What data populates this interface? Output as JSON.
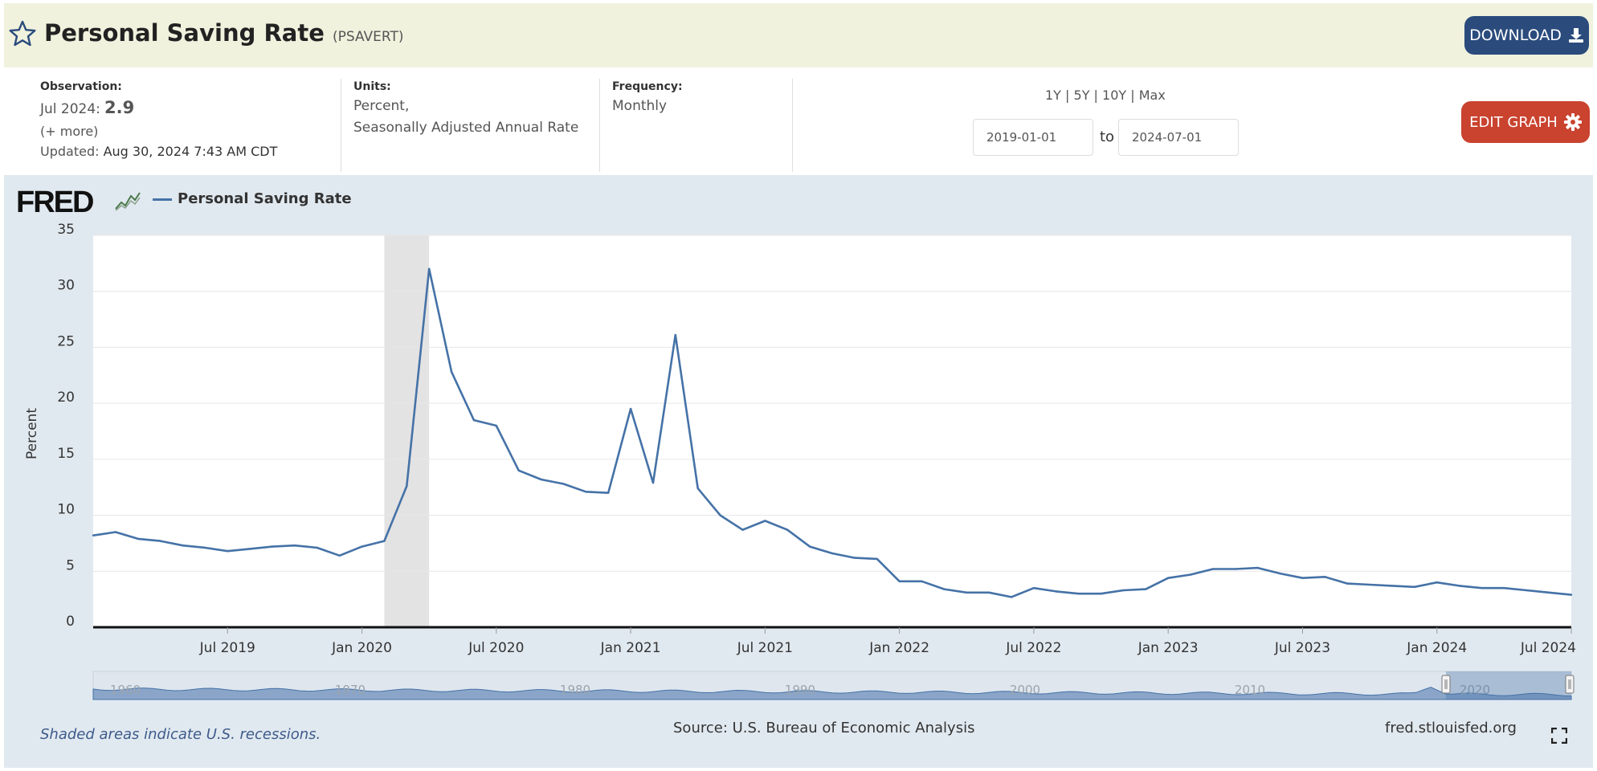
{
  "header": {
    "title": "Personal Saving Rate",
    "series_id": "(PSAVERT)",
    "download_label": "DOWNLOAD"
  },
  "meta": {
    "observation_label": "Observation:",
    "observation_date": "Jul 2024:",
    "observation_value": "2.9",
    "more_label": "(+ more)",
    "updated_label": "Updated:",
    "updated_value": "Aug 30, 2024 7:43 AM CDT",
    "units_label": "Units:",
    "units_line1": "Percent,",
    "units_line2": "Seasonally Adjusted Annual Rate",
    "frequency_label": "Frequency:",
    "frequency_value": "Monthly",
    "range_options": [
      "1Y",
      "5Y",
      "10Y",
      "Max"
    ],
    "start_date": "2019-01-01",
    "end_date": "2024-07-01",
    "to_label": "to",
    "edit_graph_label": "EDIT GRAPH"
  },
  "legend": {
    "logo": "FRED",
    "series_label": "Personal Saving Rate"
  },
  "footer": {
    "recession_note": "Shaded areas indicate U.S. recessions.",
    "source": "Source: U.S. Bureau of Economic Analysis",
    "site": "fred.stlouisfed.org"
  },
  "colors": {
    "line": "#4572a7",
    "header_bg": "#f0f2de",
    "chart_bg": "#e1e9f0",
    "download_btn": "#2a4b7c",
    "edit_btn": "#c9432f",
    "recession": "#e3e3e3"
  },
  "icons": [
    "star-icon",
    "download-icon",
    "gear-icon",
    "fred-chart-icon",
    "fullscreen-icon"
  ],
  "chart_data": {
    "type": "line",
    "title": "Personal Saving Rate",
    "xlabel": "",
    "ylabel": "Percent",
    "ylim": [
      0,
      35
    ],
    "yticks": [
      0,
      5,
      10,
      15,
      20,
      25,
      30,
      35
    ],
    "xtick_labels": [
      "Jul 2019",
      "Jan 2020",
      "Jul 2020",
      "Jan 2021",
      "Jul 2021",
      "Jan 2022",
      "Jul 2022",
      "Jan 2023",
      "Jul 2023",
      "Jan 2024",
      "Jul 2024"
    ],
    "xlim": [
      "2019-01",
      "2024-07"
    ],
    "recession": [
      "2020-02",
      "2020-04"
    ],
    "navigator_labels": [
      "1960",
      "1970",
      "1980",
      "1990",
      "2000",
      "2010",
      "2020"
    ],
    "grid": true,
    "legend_position": "top-left",
    "series": [
      {
        "name": "Personal Saving Rate",
        "x": [
          "2019-01",
          "2019-02",
          "2019-03",
          "2019-04",
          "2019-05",
          "2019-06",
          "2019-07",
          "2019-08",
          "2019-09",
          "2019-10",
          "2019-11",
          "2019-12",
          "2020-01",
          "2020-02",
          "2020-03",
          "2020-04",
          "2020-05",
          "2020-06",
          "2020-07",
          "2020-08",
          "2020-09",
          "2020-10",
          "2020-11",
          "2020-12",
          "2021-01",
          "2021-02",
          "2021-03",
          "2021-04",
          "2021-05",
          "2021-06",
          "2021-07",
          "2021-08",
          "2021-09",
          "2021-10",
          "2021-11",
          "2021-12",
          "2022-01",
          "2022-02",
          "2022-03",
          "2022-04",
          "2022-05",
          "2022-06",
          "2022-07",
          "2022-08",
          "2022-09",
          "2022-10",
          "2022-11",
          "2022-12",
          "2023-01",
          "2023-02",
          "2023-03",
          "2023-04",
          "2023-05",
          "2023-06",
          "2023-07",
          "2023-08",
          "2023-09",
          "2023-10",
          "2023-11",
          "2023-12",
          "2024-01",
          "2024-02",
          "2024-03",
          "2024-04",
          "2024-05",
          "2024-06",
          "2024-07"
        ],
        "values": [
          8.2,
          8.5,
          7.9,
          7.7,
          7.3,
          7.1,
          6.8,
          7.0,
          7.2,
          7.3,
          7.1,
          6.4,
          7.2,
          7.7,
          12.6,
          32.0,
          22.8,
          18.5,
          18.0,
          14.0,
          13.2,
          12.8,
          12.1,
          12.0,
          19.5,
          12.9,
          26.1,
          12.4,
          10.0,
          8.7,
          9.5,
          8.7,
          7.2,
          6.6,
          6.2,
          6.1,
          4.1,
          4.1,
          3.4,
          3.1,
          3.1,
          2.7,
          3.5,
          3.2,
          3.0,
          3.0,
          3.3,
          3.4,
          4.4,
          4.7,
          5.2,
          5.2,
          5.3,
          4.8,
          4.4,
          4.5,
          3.9,
          3.8,
          3.7,
          3.6,
          4.0,
          3.7,
          3.5,
          3.5,
          3.3,
          3.1,
          2.9
        ]
      }
    ]
  }
}
